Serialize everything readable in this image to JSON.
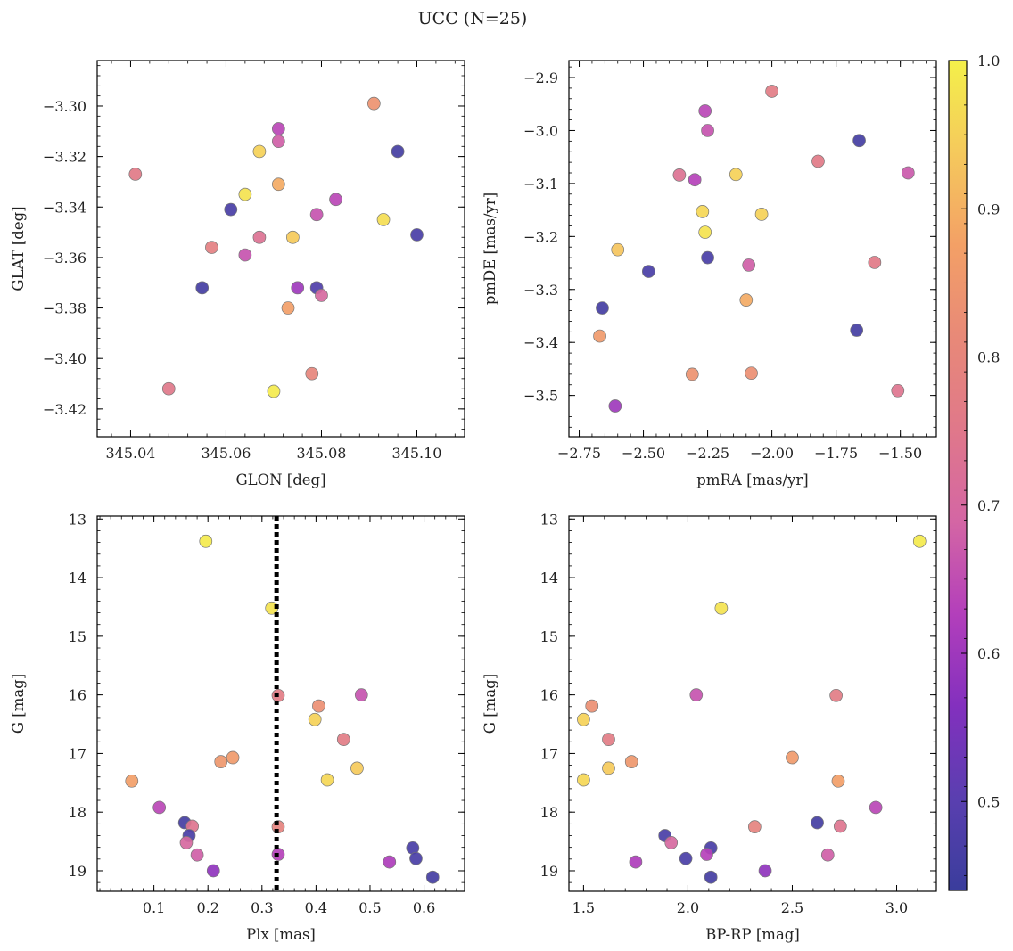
{
  "figure": {
    "title": "UCC (N=25)"
  },
  "colorbar": {
    "range": [
      0.44,
      1.0
    ],
    "ticks": [
      0.5,
      0.6,
      0.7,
      0.8,
      0.9,
      1.0
    ],
    "tick_labels": [
      "0.5",
      "0.6",
      "0.7",
      "0.8",
      "0.9",
      "1.0"
    ],
    "colormap": "plasma",
    "stops": [
      "#3a3d9c",
      "#5a3fb0",
      "#8330be",
      "#b33fbb",
      "#d466a4",
      "#e0788a",
      "#e88978",
      "#f3a066",
      "#f5c95c",
      "#f4f04a"
    ]
  },
  "chart_data": [
    {
      "type": "scatter",
      "xlabel": "GLON [deg]",
      "ylabel": "GLAT [deg]",
      "xlim": [
        345.033,
        345.11
      ],
      "ylim": [
        -3.431,
        -3.282
      ],
      "xticks": [
        345.04,
        345.06,
        345.08,
        345.1
      ],
      "xtick_labels": [
        "345.04",
        "345.06",
        "345.08",
        "345.10"
      ],
      "yticks": [
        -3.42,
        -3.4,
        -3.38,
        -3.36,
        -3.34,
        -3.32,
        -3.3
      ],
      "ytick_labels": [
        "−3.42",
        "−3.40",
        "−3.38",
        "−3.36",
        "−3.34",
        "−3.32",
        "−3.30"
      ],
      "points": [
        {
          "x": 345.091,
          "y": -3.299,
          "c": 0.84
        },
        {
          "x": 345.071,
          "y": -3.309,
          "c": 0.64
        },
        {
          "x": 345.071,
          "y": -3.314,
          "c": 0.68
        },
        {
          "x": 345.067,
          "y": -3.318,
          "c": 0.95
        },
        {
          "x": 345.096,
          "y": -3.318,
          "c": 0.46
        },
        {
          "x": 345.041,
          "y": -3.327,
          "c": 0.76
        },
        {
          "x": 345.071,
          "y": -3.331,
          "c": 0.89
        },
        {
          "x": 345.064,
          "y": -3.335,
          "c": 0.98
        },
        {
          "x": 345.083,
          "y": -3.337,
          "c": 0.64
        },
        {
          "x": 345.061,
          "y": -3.341,
          "c": 0.47
        },
        {
          "x": 345.079,
          "y": -3.343,
          "c": 0.66
        },
        {
          "x": 345.093,
          "y": -3.345,
          "c": 0.97
        },
        {
          "x": 345.1,
          "y": -3.351,
          "c": 0.47
        },
        {
          "x": 345.067,
          "y": -3.352,
          "c": 0.73
        },
        {
          "x": 345.074,
          "y": -3.352,
          "c": 0.94
        },
        {
          "x": 345.057,
          "y": -3.356,
          "c": 0.78
        },
        {
          "x": 345.064,
          "y": -3.359,
          "c": 0.66
        },
        {
          "x": 345.055,
          "y": -3.372,
          "c": 0.46
        },
        {
          "x": 345.075,
          "y": -3.372,
          "c": 0.6
        },
        {
          "x": 345.079,
          "y": -3.372,
          "c": 0.48
        },
        {
          "x": 345.08,
          "y": -3.375,
          "c": 0.7
        },
        {
          "x": 345.073,
          "y": -3.38,
          "c": 0.87
        },
        {
          "x": 345.078,
          "y": -3.406,
          "c": 0.8
        },
        {
          "x": 345.048,
          "y": -3.412,
          "c": 0.75
        },
        {
          "x": 345.07,
          "y": -3.413,
          "c": 0.99
        }
      ]
    },
    {
      "type": "scatter",
      "xlabel": "pmRA [mas/yr]",
      "ylabel": "pmDE [mas/yr]",
      "xlim": [
        -2.79,
        -1.36
      ],
      "ylim": [
        -3.578,
        -2.868
      ],
      "xticks": [
        -2.75,
        -2.5,
        -2.25,
        -2.0,
        -1.75,
        -1.5
      ],
      "xtick_labels": [
        "−2.75",
        "−2.50",
        "−2.25",
        "−2.00",
        "−1.75",
        "−1.50"
      ],
      "yticks": [
        -3.5,
        -3.4,
        -3.3,
        -3.2,
        -3.1,
        -3.0,
        -2.9
      ],
      "ytick_labels": [
        "−3.5",
        "−3.4",
        "−3.3",
        "−3.2",
        "−3.1",
        "−3.0",
        "−2.9"
      ],
      "points": [
        {
          "x": -2.0,
          "y": -2.926,
          "c": 0.77
        },
        {
          "x": -2.26,
          "y": -2.963,
          "c": 0.64
        },
        {
          "x": -2.25,
          "y": -3.0,
          "c": 0.66
        },
        {
          "x": -1.66,
          "y": -3.019,
          "c": 0.46
        },
        {
          "x": -1.82,
          "y": -3.058,
          "c": 0.76
        },
        {
          "x": -2.36,
          "y": -3.084,
          "c": 0.73
        },
        {
          "x": -2.14,
          "y": -3.083,
          "c": 0.95
        },
        {
          "x": -1.47,
          "y": -3.08,
          "c": 0.67
        },
        {
          "x": -2.3,
          "y": -3.093,
          "c": 0.63
        },
        {
          "x": -2.27,
          "y": -3.153,
          "c": 0.96
        },
        {
          "x": -2.04,
          "y": -3.158,
          "c": 0.95
        },
        {
          "x": -2.26,
          "y": -3.192,
          "c": 0.98
        },
        {
          "x": -2.6,
          "y": -3.225,
          "c": 0.93
        },
        {
          "x": -2.25,
          "y": -3.24,
          "c": 0.47
        },
        {
          "x": -1.6,
          "y": -3.249,
          "c": 0.76
        },
        {
          "x": -2.09,
          "y": -3.254,
          "c": 0.68
        },
        {
          "x": -2.48,
          "y": -3.266,
          "c": 0.47
        },
        {
          "x": -2.1,
          "y": -3.32,
          "c": 0.89
        },
        {
          "x": -2.66,
          "y": -3.335,
          "c": 0.46
        },
        {
          "x": -2.67,
          "y": -3.388,
          "c": 0.86
        },
        {
          "x": -1.67,
          "y": -3.377,
          "c": 0.46
        },
        {
          "x": -2.31,
          "y": -3.46,
          "c": 0.84
        },
        {
          "x": -2.08,
          "y": -3.458,
          "c": 0.83
        },
        {
          "x": -1.51,
          "y": -3.491,
          "c": 0.74
        },
        {
          "x": -2.61,
          "y": -3.52,
          "c": 0.6
        }
      ]
    },
    {
      "type": "scatter",
      "xlabel": "Plx [mas]",
      "ylabel": "G [mag]",
      "xlim": [
        -0.005,
        0.675
      ],
      "ylim": [
        19.35,
        12.95
      ],
      "xticks": [
        0.1,
        0.2,
        0.3,
        0.4,
        0.5,
        0.6
      ],
      "xtick_labels": [
        "0.1",
        "0.2",
        "0.3",
        "0.4",
        "0.5",
        "0.6"
      ],
      "yticks": [
        13,
        14,
        15,
        16,
        17,
        18,
        19
      ],
      "ytick_labels": [
        "13",
        "14",
        "15",
        "16",
        "17",
        "18",
        "19"
      ],
      "vline": {
        "x": 0.327,
        "style": "dotted"
      },
      "points": [
        {
          "x": 0.196,
          "y": 13.38,
          "c": 0.99
        },
        {
          "x": 0.318,
          "y": 14.52,
          "c": 0.98
        },
        {
          "x": 0.33,
          "y": 16.01,
          "c": 0.77
        },
        {
          "x": 0.484,
          "y": 16.0,
          "c": 0.66
        },
        {
          "x": 0.405,
          "y": 16.19,
          "c": 0.83
        },
        {
          "x": 0.398,
          "y": 16.42,
          "c": 0.95
        },
        {
          "x": 0.451,
          "y": 16.76,
          "c": 0.77
        },
        {
          "x": 0.246,
          "y": 17.07,
          "c": 0.86
        },
        {
          "x": 0.224,
          "y": 17.14,
          "c": 0.85
        },
        {
          "x": 0.476,
          "y": 17.25,
          "c": 0.94
        },
        {
          "x": 0.421,
          "y": 17.45,
          "c": 0.96
        },
        {
          "x": 0.059,
          "y": 17.47,
          "c": 0.87
        },
        {
          "x": 0.11,
          "y": 17.92,
          "c": 0.64
        },
        {
          "x": 0.157,
          "y": 18.18,
          "c": 0.46
        },
        {
          "x": 0.171,
          "y": 18.24,
          "c": 0.74
        },
        {
          "x": 0.33,
          "y": 18.25,
          "c": 0.79
        },
        {
          "x": 0.165,
          "y": 18.4,
          "c": 0.47
        },
        {
          "x": 0.16,
          "y": 18.52,
          "c": 0.7
        },
        {
          "x": 0.579,
          "y": 18.61,
          "c": 0.47
        },
        {
          "x": 0.18,
          "y": 18.73,
          "c": 0.68
        },
        {
          "x": 0.33,
          "y": 18.72,
          "c": 0.63
        },
        {
          "x": 0.585,
          "y": 18.79,
          "c": 0.47
        },
        {
          "x": 0.536,
          "y": 18.85,
          "c": 0.62
        },
        {
          "x": 0.21,
          "y": 19.0,
          "c": 0.58
        },
        {
          "x": 0.616,
          "y": 19.11,
          "c": 0.46
        }
      ]
    },
    {
      "type": "scatter",
      "xlabel": "BP-RP [mag]",
      "ylabel": "G [mag]",
      "xlim": [
        1.43,
        3.19
      ],
      "ylim": [
        19.35,
        12.95
      ],
      "xticks": [
        1.5,
        2.0,
        2.5,
        3.0
      ],
      "xtick_labels": [
        "1.5",
        "2.0",
        "2.5",
        "3.0"
      ],
      "yticks": [
        13,
        14,
        15,
        16,
        17,
        18,
        19
      ],
      "ytick_labels": [
        "13",
        "14",
        "15",
        "16",
        "17",
        "18",
        "19"
      ],
      "points": [
        {
          "x": 3.11,
          "y": 13.38,
          "c": 0.99
        },
        {
          "x": 2.16,
          "y": 14.52,
          "c": 0.98
        },
        {
          "x": 2.04,
          "y": 16.0,
          "c": 0.66
        },
        {
          "x": 2.71,
          "y": 16.01,
          "c": 0.77
        },
        {
          "x": 1.54,
          "y": 16.19,
          "c": 0.83
        },
        {
          "x": 1.5,
          "y": 16.42,
          "c": 0.95
        },
        {
          "x": 1.62,
          "y": 16.76,
          "c": 0.77
        },
        {
          "x": 2.5,
          "y": 17.07,
          "c": 0.86
        },
        {
          "x": 1.73,
          "y": 17.14,
          "c": 0.85
        },
        {
          "x": 1.62,
          "y": 17.25,
          "c": 0.94
        },
        {
          "x": 1.5,
          "y": 17.45,
          "c": 0.96
        },
        {
          "x": 2.72,
          "y": 17.47,
          "c": 0.87
        },
        {
          "x": 2.9,
          "y": 17.92,
          "c": 0.64
        },
        {
          "x": 2.62,
          "y": 18.18,
          "c": 0.46
        },
        {
          "x": 2.73,
          "y": 18.24,
          "c": 0.74
        },
        {
          "x": 2.32,
          "y": 18.25,
          "c": 0.79
        },
        {
          "x": 1.89,
          "y": 18.4,
          "c": 0.47
        },
        {
          "x": 1.92,
          "y": 18.52,
          "c": 0.7
        },
        {
          "x": 2.11,
          "y": 18.61,
          "c": 0.47
        },
        {
          "x": 2.67,
          "y": 18.73,
          "c": 0.68
        },
        {
          "x": 2.09,
          "y": 18.72,
          "c": 0.63
        },
        {
          "x": 1.99,
          "y": 18.79,
          "c": 0.47
        },
        {
          "x": 1.75,
          "y": 18.85,
          "c": 0.62
        },
        {
          "x": 2.37,
          "y": 19.0,
          "c": 0.58
        },
        {
          "x": 2.11,
          "y": 19.11,
          "c": 0.46
        }
      ]
    }
  ]
}
